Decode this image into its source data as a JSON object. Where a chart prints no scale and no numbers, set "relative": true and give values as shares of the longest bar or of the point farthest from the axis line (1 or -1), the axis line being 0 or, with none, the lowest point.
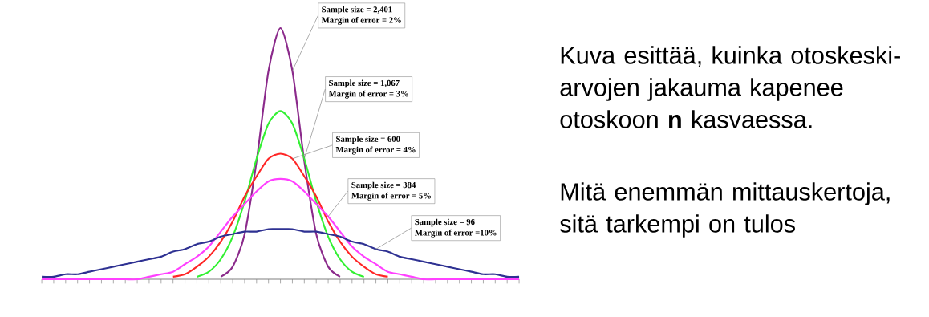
{
  "chart_data": {
    "type": "line",
    "relative": true,
    "categories": [
      null,
      null,
      null,
      null,
      null,
      null,
      null,
      null,
      null,
      null,
      null,
      null,
      null,
      null,
      null,
      null,
      null,
      null,
      null,
      null,
      null,
      null,
      null,
      null,
      null,
      null,
      null,
      null,
      null,
      null,
      null,
      null,
      null,
      null,
      null,
      null,
      null,
      null,
      null,
      null,
      null
    ],
    "series": [
      {
        "color": "#8b2a8b",
        "values": [
          null,
          null,
          null,
          null,
          null,
          null,
          null,
          null,
          null,
          null,
          null,
          null,
          null,
          null,
          null,
          0.01,
          0.05,
          0.18,
          0.47,
          0.83,
          1,
          0.83,
          0.47,
          0.18,
          0.05,
          0.01,
          null,
          null,
          null,
          null,
          null,
          null,
          null,
          null,
          null,
          null,
          null,
          null,
          null,
          null,
          null
        ]
      },
      {
        "color": "#33f033",
        "values": [
          null,
          null,
          null,
          null,
          null,
          null,
          null,
          null,
          null,
          null,
          null,
          null,
          null,
          0.01,
          0.03,
          0.08,
          0.17,
          0.31,
          0.48,
          0.62,
          0.67,
          0.62,
          0.48,
          0.31,
          0.17,
          0.08,
          0.03,
          0.01,
          null,
          null,
          null,
          null,
          null,
          null,
          null,
          null,
          null,
          null,
          null,
          null,
          null
        ]
      },
      {
        "color": "#ff2626",
        "values": [
          null,
          null,
          null,
          null,
          null,
          null,
          null,
          null,
          null,
          null,
          null,
          0.01,
          0.02,
          0.05,
          0.09,
          0.15,
          0.23,
          0.33,
          0.41,
          0.48,
          0.5,
          0.48,
          0.41,
          0.33,
          0.23,
          0.15,
          0.09,
          0.05,
          0.02,
          0.01,
          null,
          null,
          null,
          null,
          null,
          null,
          null,
          null,
          null,
          null,
          null
        ]
      },
      {
        "color": "#ff40ff",
        "values": [
          0,
          0,
          0,
          0,
          0,
          0,
          0,
          0,
          0,
          0.01,
          0.02,
          0.03,
          0.06,
          0.09,
          0.13,
          0.19,
          0.25,
          0.3,
          0.35,
          0.39,
          0.4,
          0.39,
          0.35,
          0.3,
          0.25,
          0.19,
          0.13,
          0.09,
          0.06,
          0.03,
          0.02,
          0.01,
          0,
          0,
          0,
          0,
          0,
          0,
          0,
          0,
          0
        ]
      },
      {
        "color": "#2e3192",
        "values": [
          0.01,
          0.01,
          0.02,
          0.02,
          0.03,
          0.04,
          0.05,
          0.06,
          0.07,
          0.08,
          0.09,
          0.11,
          0.12,
          0.14,
          0.15,
          0.17,
          0.18,
          0.19,
          0.19,
          0.2,
          0.2,
          0.2,
          0.19,
          0.19,
          0.18,
          0.17,
          0.15,
          0.14,
          0.12,
          0.11,
          0.09,
          0.08,
          0.07,
          0.06,
          0.05,
          0.04,
          0.03,
          0.02,
          0.02,
          0.01,
          0.01
        ]
      }
    ],
    "annotations": [
      "Sample size = 2,401",
      "Margin of error = 2%",
      "Sample size = 1,067",
      "Margin of error = 3%",
      "Sample size = 600",
      "Margin of error = 4%",
      "Sample size = 384",
      "Margin of error = 5%",
      "Sample size = 96",
      "Margin of error =10%",
      "Kuva esittää, kuinka otoskeski-arvojen jakauma kapenee otoskoon **n** kasvaessa.",
      "Mitä enemmän mittauskertoja, sitä tarkempi on tulos"
    ]
  }
}
